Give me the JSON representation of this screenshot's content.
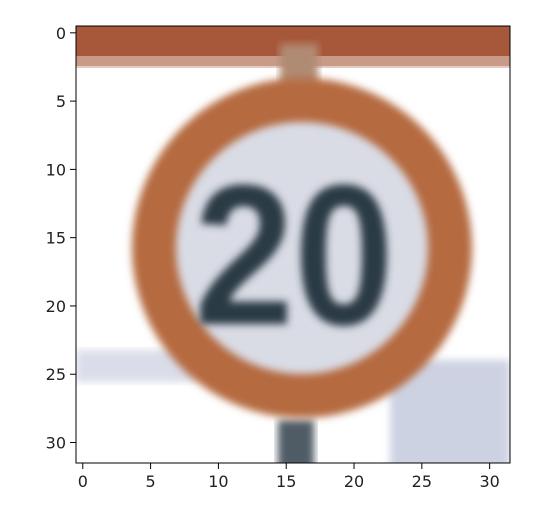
{
  "image_title": "",
  "x_ticks": [
    "0",
    "5",
    "10",
    "15",
    "20",
    "25",
    "30"
  ],
  "y_ticks": [
    "0",
    "5",
    "10",
    "15",
    "20",
    "25",
    "30"
  ],
  "x_tick_values": [
    0,
    5,
    10,
    15,
    20,
    25,
    30
  ],
  "y_tick_values": [
    0,
    5,
    10,
    15,
    20,
    25,
    30
  ],
  "image_grid": {
    "rows": 32,
    "cols": 32
  },
  "sign_text": "20",
  "colors": {
    "top_bar": "#a8583a",
    "ring": "#b56a40",
    "sign_face": "#d9dbe5",
    "digits": "#2c3a45",
    "pole": "#4f5b66",
    "background": "#ffffff",
    "bg_panel_left": "#dadde9",
    "bg_panel_right": "#cdd2e3"
  }
}
